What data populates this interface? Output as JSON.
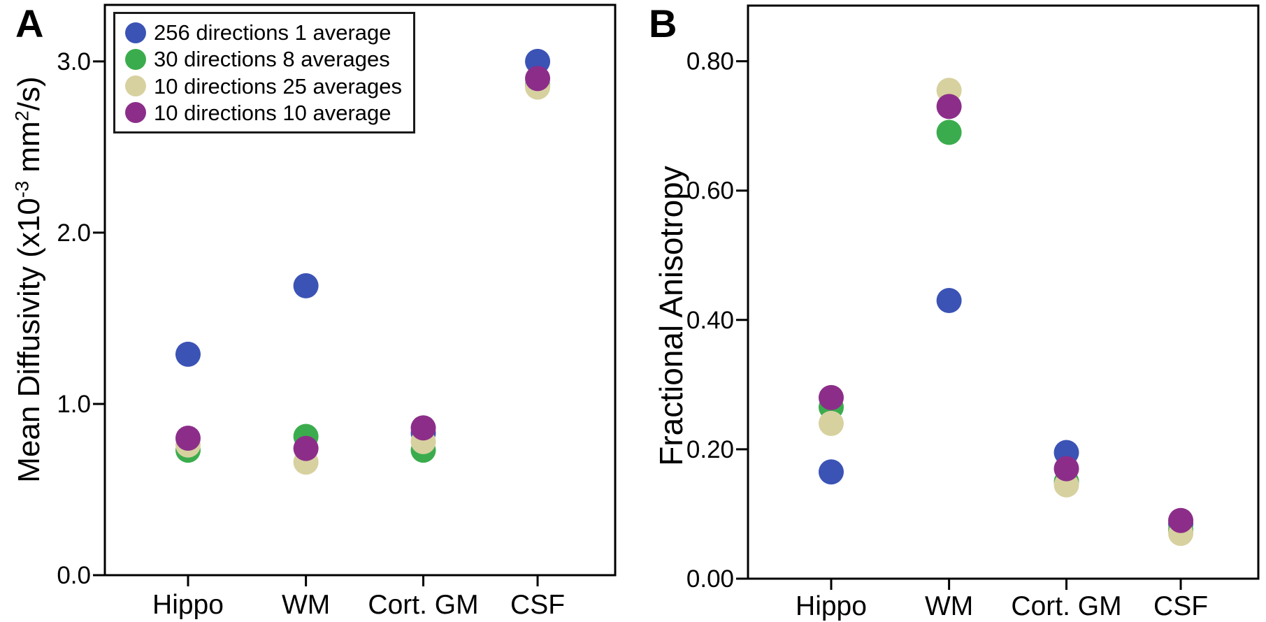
{
  "figure": {
    "background": "#ffffff",
    "axis_color": "#000000",
    "text_color": "#000000"
  },
  "chart_data": [
    {
      "type": "scatter",
      "panel_label": "A",
      "ylabel": "Mean Diffusivity (x10-3 mm2/s)",
      "ylabel_parts": {
        "base1": "Mean Diffusivity (x10",
        "sup1": "-3",
        "base2": " mm",
        "sup2": "2",
        "base3": "/s)"
      },
      "categories": [
        "Hippo",
        "WM",
        "Cort. GM",
        "CSF"
      ],
      "ylim": [
        0,
        3.33
      ],
      "yticks": [
        0,
        1,
        2,
        3
      ],
      "ytick_labels": [
        "0.0",
        "1.0",
        "2.0",
        "3.0"
      ],
      "grid": false,
      "legend_visible": true,
      "legend_position": "top-left",
      "series": [
        {
          "name": "256 directions 1 average",
          "color": "#3B53B5",
          "values": [
            1.29,
            1.69,
            0.83,
            3.0
          ]
        },
        {
          "name": "30 directions 8 averages",
          "color": "#3BAC4D",
          "values": [
            0.73,
            0.81,
            0.73,
            2.86
          ]
        },
        {
          "name": "10 directions 25 averages",
          "color": "#D7D1A0",
          "values": [
            0.76,
            0.66,
            0.78,
            2.85
          ]
        },
        {
          "name": "10 directions 10 average",
          "color": "#8C2E89",
          "values": [
            0.8,
            0.74,
            0.86,
            2.9
          ]
        }
      ]
    },
    {
      "type": "scatter",
      "panel_label": "B",
      "ylabel": "Fractional Anisotropy",
      "categories": [
        "Hippo",
        "WM",
        "Cort. GM",
        "CSF"
      ],
      "ylim": [
        0,
        0.886
      ],
      "yticks": [
        0,
        0.2,
        0.4,
        0.6,
        0.8
      ],
      "ytick_labels": [
        "0.00",
        "0.20",
        "0.40",
        "0.60",
        "0.80"
      ],
      "grid": false,
      "legend_visible": false,
      "series": [
        {
          "name": "256 directions 1 average",
          "color": "#3B53B5",
          "values": [
            0.165,
            0.43,
            0.195,
            0.085
          ]
        },
        {
          "name": "30 directions 8 averages",
          "color": "#3BAC4D",
          "values": [
            0.265,
            0.69,
            0.15,
            0.075
          ]
        },
        {
          "name": "10 directions 25 averages",
          "color": "#D7D1A0",
          "values": [
            0.24,
            0.755,
            0.145,
            0.07
          ]
        },
        {
          "name": "10 directions 10 average",
          "color": "#8C2E89",
          "values": [
            0.28,
            0.73,
            0.17,
            0.09
          ]
        }
      ]
    }
  ]
}
